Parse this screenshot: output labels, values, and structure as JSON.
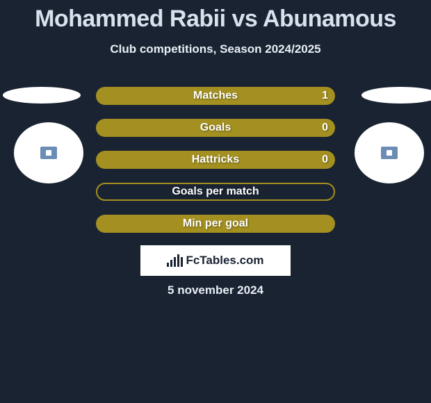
{
  "title": "Mohammed Rabii vs Abunamous",
  "subtitle": "Club competitions, Season 2024/2025",
  "stats": [
    {
      "label": "Matches",
      "value_right": "1",
      "style": "full"
    },
    {
      "label": "Goals",
      "value_right": "0",
      "style": "full"
    },
    {
      "label": "Hattricks",
      "value_right": "0",
      "style": "full"
    },
    {
      "label": "Goals per match",
      "value_right": "",
      "style": "border"
    },
    {
      "label": "Min per goal",
      "value_right": "",
      "style": "full"
    }
  ],
  "brand": "FcTables.com",
  "date": "5 november 2024",
  "colors": {
    "background": "#1a2332",
    "title": "#d8e2ed",
    "text": "#e8eef5",
    "bar_fill": "#a39020",
    "white": "#ffffff"
  },
  "brand_bars": [
    6,
    10,
    14,
    18,
    14
  ]
}
